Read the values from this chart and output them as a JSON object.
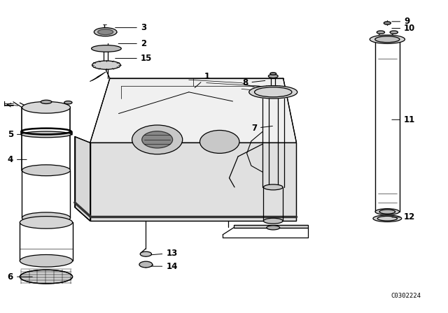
{
  "bg_color": "#ffffff",
  "line_color": "#000000",
  "diagram_code": "C0302224",
  "lw": 0.9,
  "label_fs": 8.5,
  "labels": {
    "1": [
      0.43,
      0.72,
      0.455,
      0.76
    ],
    "2": [
      0.255,
      0.868,
      0.31,
      0.868
    ],
    "3": [
      0.248,
      0.92,
      0.31,
      0.92
    ],
    "4": [
      0.055,
      0.49,
      0.02,
      0.49
    ],
    "5": [
      0.062,
      0.572,
      0.02,
      0.572
    ],
    "6": [
      0.068,
      0.108,
      0.02,
      0.108
    ],
    "7": [
      0.615,
      0.6,
      0.575,
      0.592
    ],
    "8": [
      0.598,
      0.748,
      0.555,
      0.74
    ],
    "9": [
      0.878,
      0.94,
      0.91,
      0.94
    ],
    "10": [
      0.878,
      0.918,
      0.91,
      0.918
    ],
    "11": [
      0.878,
      0.62,
      0.91,
      0.62
    ],
    "12": [
      0.878,
      0.302,
      0.91,
      0.302
    ],
    "13": [
      0.322,
      0.178,
      0.368,
      0.185
    ],
    "14": [
      0.322,
      0.142,
      0.368,
      0.142
    ],
    "15": [
      0.248,
      0.82,
      0.31,
      0.82
    ]
  }
}
